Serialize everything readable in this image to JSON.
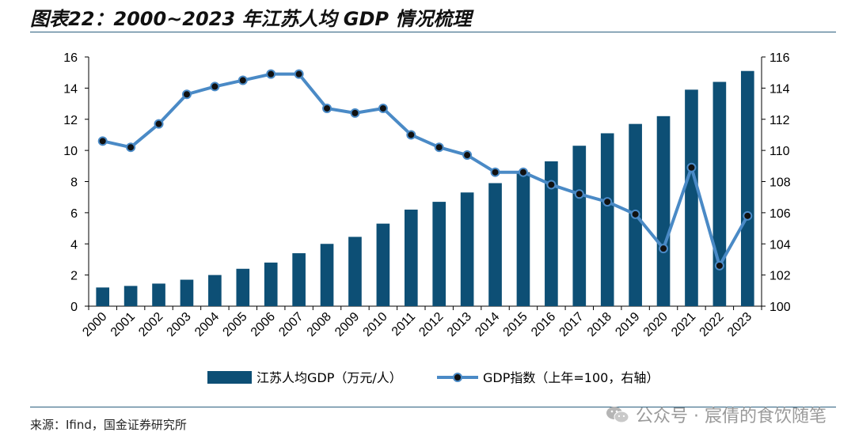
{
  "header": {
    "title": "图表22：2000~2023 年江苏人均 GDP 情况梳理"
  },
  "footer": {
    "source": "来源：Ifind，国金证券研究所",
    "watermark": "公众号 · 宸倩的食饮随笔"
  },
  "colors": {
    "bar": "#0d4f75",
    "line": "#4a8ac6",
    "marker": "#111111",
    "rule": "#2a5e7e"
  },
  "chart_data": {
    "type": "bar",
    "categories": [
      "2000",
      "2001",
      "2002",
      "2003",
      "2004",
      "2005",
      "2006",
      "2007",
      "2008",
      "2009",
      "2010",
      "2011",
      "2012",
      "2013",
      "2014",
      "2015",
      "2016",
      "2017",
      "2018",
      "2019",
      "2020",
      "2021",
      "2022",
      "2023"
    ],
    "series": [
      {
        "name": "江苏人均GDP（万元/人）",
        "type": "bar",
        "axis": "left",
        "values": [
          1.2,
          1.3,
          1.45,
          1.7,
          2.0,
          2.4,
          2.8,
          3.4,
          4.0,
          4.45,
          5.3,
          6.2,
          6.7,
          7.3,
          7.9,
          8.6,
          9.3,
          10.3,
          11.1,
          11.7,
          12.2,
          13.9,
          14.4,
          15.1
        ]
      },
      {
        "name": "GDP指数（上年=100，右轴）",
        "type": "line",
        "axis": "right",
        "values": [
          110.6,
          110.2,
          111.7,
          113.6,
          114.1,
          114.5,
          114.9,
          114.9,
          112.7,
          112.4,
          112.7,
          111.0,
          110.2,
          109.7,
          108.6,
          108.6,
          107.8,
          107.2,
          106.7,
          105.9,
          103.7,
          108.9,
          102.6,
          105.8
        ]
      }
    ],
    "ylim_left": [
      0,
      16
    ],
    "yticks_left": [
      "0",
      "2",
      "4",
      "6",
      "8",
      "10",
      "12",
      "14",
      "16"
    ],
    "ylim_right": [
      100,
      116
    ],
    "yticks_right": [
      "100",
      "102",
      "104",
      "106",
      "108",
      "110",
      "112",
      "114",
      "116"
    ],
    "legend_position": "bottom",
    "grid": false
  }
}
